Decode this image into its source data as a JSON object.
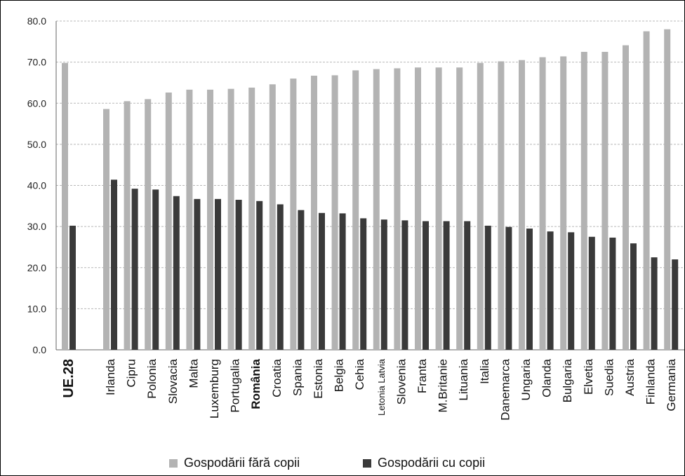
{
  "chart_data": {
    "type": "bar",
    "categories": [
      "UE.28",
      "Irlanda",
      "Cipru",
      "Polonia",
      "Slovacia",
      "Malta",
      "Luxemburg",
      "Portugalia",
      "România",
      "Croatia",
      "Spania",
      "Estonia",
      "Belgia",
      "Cehia",
      "Letonia Latvia",
      "Slovenia",
      "Franta",
      "M.Britanie",
      "Lituania",
      "Italia",
      "Danemarca",
      "Ungaria",
      "Olanda",
      "Bulgaria",
      "Elvetia",
      "Suedia",
      "Austria",
      "Finlanda",
      "Germania"
    ],
    "series": [
      {
        "name": "Gospodării fără copii",
        "color": "#b3b3b3",
        "values": [
          69.8,
          58.6,
          60.5,
          61.0,
          62.6,
          63.3,
          63.3,
          63.5,
          63.8,
          64.6,
          66.0,
          66.7,
          66.8,
          68.0,
          68.3,
          68.5,
          68.7,
          68.7,
          68.7,
          69.8,
          70.2,
          70.5,
          71.2,
          71.4,
          72.5,
          72.5,
          74.1,
          77.5,
          78.0
        ]
      },
      {
        "name": "Gospodării cu copii",
        "color": "#3a3a3a",
        "values": [
          30.2,
          41.4,
          39.2,
          39.0,
          37.4,
          36.7,
          36.7,
          36.5,
          36.2,
          35.4,
          34.0,
          33.3,
          33.2,
          32.0,
          31.7,
          31.5,
          31.3,
          31.3,
          31.3,
          30.2,
          29.9,
          29.5,
          28.8,
          28.6,
          27.5,
          27.3,
          25.9,
          22.5,
          22.0
        ]
      }
    ],
    "yticks": [
      "0.0",
      "10.0",
      "20.0",
      "30.0",
      "40.0",
      "50.0",
      "60.0",
      "70.0",
      "80.0"
    ],
    "ylim": [
      0,
      80
    ],
    "grid": true,
    "legend_position": "bottom"
  }
}
